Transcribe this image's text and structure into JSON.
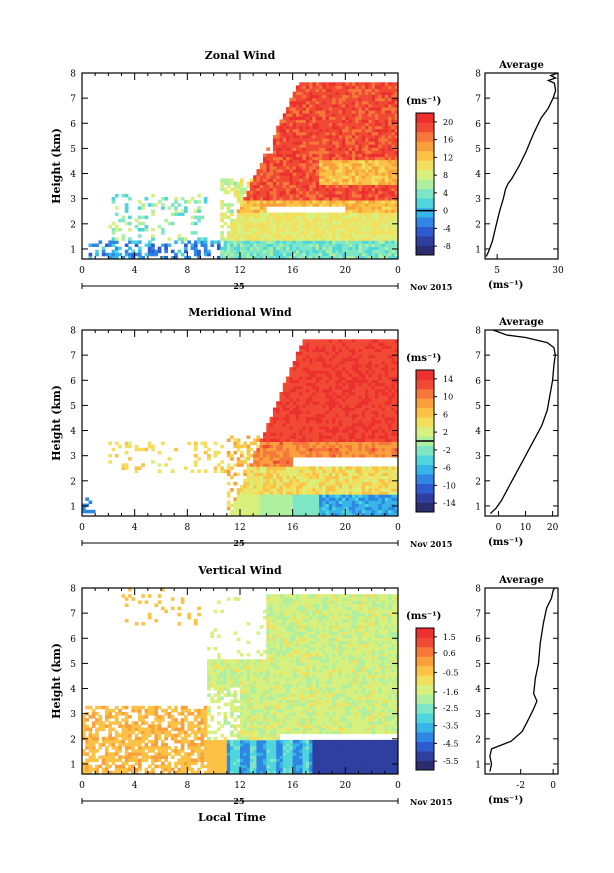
{
  "chart_data": [
    {
      "type": "heatmap",
      "title": "Zonal Wind",
      "ylabel": "Height (km)",
      "xlabel": "",
      "x_ticks": [
        "0",
        "4",
        "8",
        "12",
        "16",
        "20",
        "0"
      ],
      "xlim": [
        0,
        24
      ],
      "y_ticks": [
        "1",
        "2",
        "3",
        "4",
        "5",
        "6",
        "7",
        "8"
      ],
      "ylim": [
        0.6,
        8
      ],
      "date_label": "25",
      "month_label": "Nov 2015",
      "colorbar": {
        "unit": "(ms⁻¹)",
        "ticks": [
          "20",
          "16",
          "12",
          "8",
          "4",
          "0",
          "-4",
          "-8"
        ],
        "min": -10,
        "max": 22,
        "zero_line": 0
      },
      "average_profile": {
        "title": "Average",
        "xlabel": "(ms⁻¹)",
        "x_ticks": [
          "5",
          "30"
        ],
        "xlim": [
          0,
          30
        ],
        "ylim": [
          0.6,
          8
        ],
        "y_ticks": [
          "1",
          "2",
          "3",
          "4",
          "5",
          "6",
          "7",
          "8"
        ],
        "points": [
          [
            0.5,
            0.7
          ],
          [
            1.5,
            0.9
          ],
          [
            3,
            1.3
          ],
          [
            4.5,
            1.9
          ],
          [
            6,
            2.5
          ],
          [
            7.5,
            3.0
          ],
          [
            8.5,
            3.4
          ],
          [
            9.5,
            3.6
          ],
          [
            11,
            3.8
          ],
          [
            14,
            4.3
          ],
          [
            17,
            4.9
          ],
          [
            20,
            5.6
          ],
          [
            23,
            6.2
          ],
          [
            26,
            6.6
          ],
          [
            28,
            7.0
          ],
          [
            29,
            7.3
          ],
          [
            28.5,
            7.6
          ],
          [
            26,
            7.7
          ],
          [
            29,
            7.8
          ],
          [
            27,
            7.9
          ],
          [
            30,
            8.0
          ]
        ]
      }
    },
    {
      "type": "heatmap",
      "title": "Meridional Wind",
      "ylabel": "Height (km)",
      "xlabel": "",
      "x_ticks": [
        "0",
        "4",
        "8",
        "12",
        "16",
        "20",
        "0"
      ],
      "xlim": [
        0,
        24
      ],
      "y_ticks": [
        "1",
        "2",
        "3",
        "4",
        "5",
        "6",
        "7",
        "8"
      ],
      "ylim": [
        0.6,
        8
      ],
      "date_label": "25",
      "month_label": "Nov 2015",
      "colorbar": {
        "unit": "(ms⁻¹)",
        "ticks": [
          "14",
          "10",
          "6",
          "2",
          "-2",
          "-6",
          "-10",
          "-14"
        ],
        "min": -16,
        "max": 16,
        "zero_line": 0
      },
      "average_profile": {
        "title": "Average",
        "xlabel": "(ms⁻¹)",
        "x_ticks": [
          "0",
          "10",
          "20"
        ],
        "xlim": [
          -5,
          22
        ],
        "ylim": [
          0.6,
          8
        ],
        "y_ticks": [
          "1",
          "2",
          "3",
          "4",
          "5",
          "6",
          "7",
          "8"
        ],
        "points": [
          [
            -3,
            0.7
          ],
          [
            -1,
            0.9
          ],
          [
            1,
            1.2
          ],
          [
            3,
            1.6
          ],
          [
            5,
            2.0
          ],
          [
            7,
            2.4
          ],
          [
            9,
            2.8
          ],
          [
            11,
            3.2
          ],
          [
            13,
            3.6
          ],
          [
            16,
            4.2
          ],
          [
            18,
            4.8
          ],
          [
            19,
            5.4
          ],
          [
            20,
            6.0
          ],
          [
            20.5,
            6.6
          ],
          [
            21,
            7.0
          ],
          [
            20.5,
            7.3
          ],
          [
            18,
            7.5
          ],
          [
            10,
            7.7
          ],
          [
            3,
            7.8
          ],
          [
            -2,
            8.0
          ]
        ]
      }
    },
    {
      "type": "heatmap",
      "title": "Vertical Wind",
      "ylabel": "Height (km)",
      "xlabel": "Local Time",
      "x_ticks": [
        "0",
        "4",
        "8",
        "12",
        "16",
        "20",
        "0"
      ],
      "xlim": [
        0,
        24
      ],
      "y_ticks": [
        "1",
        "2",
        "3",
        "4",
        "5",
        "6",
        "7",
        "8"
      ],
      "ylim": [
        0.6,
        8
      ],
      "date_label": "25",
      "month_label": "Nov 2015",
      "colorbar": {
        "unit": "(ms⁻¹)",
        "ticks": [
          "1.5",
          "0.6",
          "-0.5",
          "-1.6",
          "-2.5",
          "-3.5",
          "-4.5",
          "-5.5"
        ],
        "min": -6.0,
        "max": 2.0
      },
      "average_profile": {
        "title": "Average",
        "xlabel": "(ms⁻¹)",
        "x_ticks": [
          "-2",
          "0"
        ],
        "xlim": [
          -4.2,
          0.3
        ],
        "ylim": [
          0.6,
          8
        ],
        "y_ticks": [
          "1",
          "2",
          "3",
          "4",
          "5",
          "6",
          "7",
          "8"
        ],
        "points": [
          [
            -3.9,
            0.7
          ],
          [
            -3.8,
            1.0
          ],
          [
            -3.9,
            1.3
          ],
          [
            -3.8,
            1.6
          ],
          [
            -2.6,
            1.9
          ],
          [
            -1.9,
            2.3
          ],
          [
            -1.5,
            2.8
          ],
          [
            -1.2,
            3.2
          ],
          [
            -1.0,
            3.5
          ],
          [
            -1.2,
            3.8
          ],
          [
            -1.1,
            4.4
          ],
          [
            -0.9,
            5.0
          ],
          [
            -0.8,
            5.8
          ],
          [
            -0.6,
            6.6
          ],
          [
            -0.4,
            7.2
          ],
          [
            -0.1,
            7.6
          ],
          [
            0.0,
            7.9
          ],
          [
            0.1,
            8.0
          ]
        ]
      }
    }
  ],
  "colormap": [
    "#2b2d6e",
    "#2e3fa0",
    "#2e5bd0",
    "#2f86e3",
    "#35b5e8",
    "#4fd6dc",
    "#7ee6c5",
    "#aef0a0",
    "#d8f07e",
    "#f3df5e",
    "#fbc246",
    "#f99f3c",
    "#f5773a",
    "#f04a34",
    "#ec3030"
  ]
}
